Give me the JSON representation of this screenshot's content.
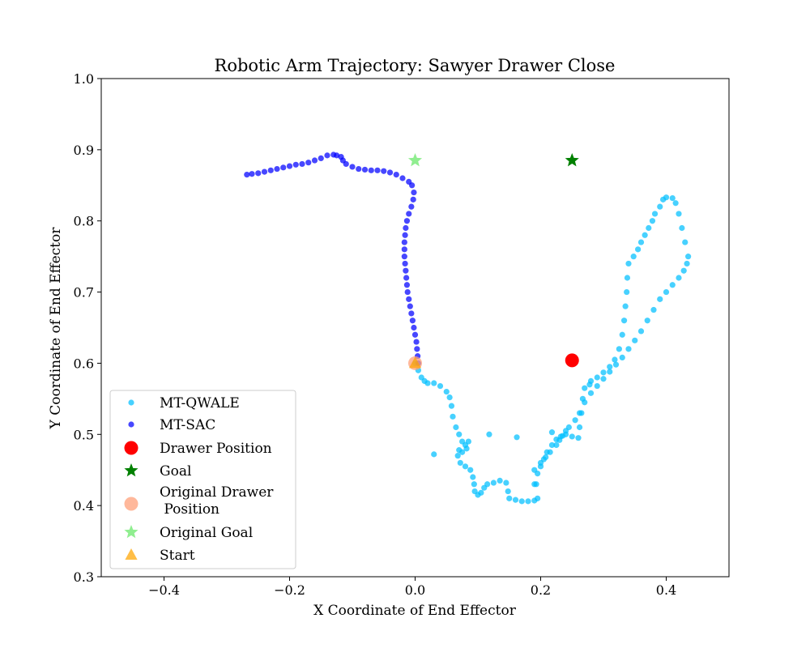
{
  "chart_data": {
    "type": "scatter",
    "title": "Robotic Arm Trajectory: Sawyer Drawer Close",
    "xlabel": "X Coordinate of End Effector",
    "ylabel": "Y Coordinate of End Effector",
    "xlim": [
      -0.5,
      0.5
    ],
    "ylim": [
      0.3,
      1.0
    ],
    "xticks": [
      -0.4,
      -0.2,
      0.0,
      0.2,
      0.4
    ],
    "xtick_labels": [
      "−0.4",
      "−0.2",
      "0.0",
      "0.2",
      "0.4"
    ],
    "yticks": [
      0.3,
      0.4,
      0.5,
      0.6,
      0.7,
      0.8,
      0.9,
      1.0
    ],
    "ytick_labels": [
      "0.3",
      "0.4",
      "0.5",
      "0.6",
      "0.7",
      "0.8",
      "0.9",
      "1.0"
    ],
    "grid": false,
    "legend_position": "lower-left",
    "series": [
      {
        "name": "MT-QWALE",
        "marker": "circle",
        "color": "#00BFFF",
        "points": [
          [
            0.0,
            0.6
          ],
          [
            0.005,
            0.59
          ],
          [
            0.01,
            0.58
          ],
          [
            0.015,
            0.575
          ],
          [
            0.02,
            0.572
          ],
          [
            0.03,
            0.572
          ],
          [
            0.04,
            0.568
          ],
          [
            0.05,
            0.56
          ],
          [
            0.055,
            0.552
          ],
          [
            0.058,
            0.54
          ],
          [
            0.06,
            0.525
          ],
          [
            0.065,
            0.51
          ],
          [
            0.07,
            0.5
          ],
          [
            0.075,
            0.49
          ],
          [
            0.08,
            0.485
          ],
          [
            0.085,
            0.49
          ],
          [
            0.082,
            0.48
          ],
          [
            0.075,
            0.475
          ],
          [
            0.07,
            0.478
          ],
          [
            0.068,
            0.47
          ],
          [
            0.072,
            0.46
          ],
          [
            0.08,
            0.455
          ],
          [
            0.088,
            0.45
          ],
          [
            0.092,
            0.44
          ],
          [
            0.094,
            0.43
          ],
          [
            0.095,
            0.42
          ],
          [
            0.1,
            0.415
          ],
          [
            0.105,
            0.418
          ],
          [
            0.11,
            0.425
          ],
          [
            0.115,
            0.43
          ],
          [
            0.125,
            0.432
          ],
          [
            0.135,
            0.435
          ],
          [
            0.145,
            0.432
          ],
          [
            0.148,
            0.42
          ],
          [
            0.15,
            0.41
          ],
          [
            0.16,
            0.408
          ],
          [
            0.17,
            0.406
          ],
          [
            0.18,
            0.406
          ],
          [
            0.19,
            0.407
          ],
          [
            0.195,
            0.41
          ],
          [
            0.19,
            0.43
          ],
          [
            0.19,
            0.45
          ],
          [
            0.2,
            0.455
          ],
          [
            0.205,
            0.465
          ],
          [
            0.21,
            0.475
          ],
          [
            0.218,
            0.485
          ],
          [
            0.225,
            0.493
          ],
          [
            0.232,
            0.497
          ],
          [
            0.24,
            0.5
          ],
          [
            0.25,
            0.497
          ],
          [
            0.26,
            0.495
          ],
          [
            0.262,
            0.51
          ],
          [
            0.265,
            0.53
          ],
          [
            0.267,
            0.55
          ],
          [
            0.27,
            0.565
          ],
          [
            0.278,
            0.57
          ],
          [
            0.28,
            0.575
          ],
          [
            0.29,
            0.58
          ],
          [
            0.3,
            0.587
          ],
          [
            0.31,
            0.595
          ],
          [
            0.318,
            0.605
          ],
          [
            0.325,
            0.62
          ],
          [
            0.33,
            0.64
          ],
          [
            0.333,
            0.66
          ],
          [
            0.335,
            0.68
          ],
          [
            0.337,
            0.7
          ],
          [
            0.338,
            0.72
          ],
          [
            0.34,
            0.74
          ],
          [
            0.348,
            0.75
          ],
          [
            0.355,
            0.76
          ],
          [
            0.36,
            0.77
          ],
          [
            0.366,
            0.78
          ],
          [
            0.372,
            0.79
          ],
          [
            0.378,
            0.8
          ],
          [
            0.382,
            0.81
          ],
          [
            0.39,
            0.82
          ],
          [
            0.395,
            0.83
          ],
          [
            0.4,
            0.833
          ],
          [
            0.41,
            0.832
          ],
          [
            0.415,
            0.825
          ],
          [
            0.42,
            0.81
          ],
          [
            0.425,
            0.79
          ],
          [
            0.43,
            0.77
          ],
          [
            0.435,
            0.75
          ],
          [
            0.433,
            0.74
          ],
          [
            0.428,
            0.73
          ],
          [
            0.42,
            0.72
          ],
          [
            0.41,
            0.71
          ],
          [
            0.4,
            0.7
          ],
          [
            0.39,
            0.69
          ],
          [
            0.38,
            0.675
          ],
          [
            0.37,
            0.66
          ],
          [
            0.36,
            0.645
          ],
          [
            0.35,
            0.632
          ],
          [
            0.34,
            0.62
          ],
          [
            0.33,
            0.608
          ],
          [
            0.32,
            0.598
          ],
          [
            0.31,
            0.588
          ],
          [
            0.3,
            0.578
          ],
          [
            0.29,
            0.568
          ],
          [
            0.28,
            0.558
          ],
          [
            0.27,
            0.545
          ],
          [
            0.262,
            0.53
          ],
          [
            0.255,
            0.52
          ],
          [
            0.245,
            0.51
          ],
          [
            0.24,
            0.505
          ],
          [
            0.235,
            0.498
          ],
          [
            0.23,
            0.492
          ],
          [
            0.225,
            0.485
          ],
          [
            0.215,
            0.475
          ],
          [
            0.208,
            0.468
          ],
          [
            0.2,
            0.46
          ],
          [
            0.195,
            0.445
          ],
          [
            0.193,
            0.43
          ],
          [
            0.03,
            0.472
          ],
          [
            0.118,
            0.5
          ],
          [
            0.162,
            0.496
          ],
          [
            0.218,
            0.503
          ]
        ]
      },
      {
        "name": "MT-SAC",
        "marker": "circle",
        "color": "#0000FF",
        "points": [
          [
            0.005,
            0.6
          ],
          [
            0.004,
            0.61
          ],
          [
            0.003,
            0.62
          ],
          [
            0.002,
            0.63
          ],
          [
            0.0,
            0.64
          ],
          [
            -0.002,
            0.65
          ],
          [
            -0.004,
            0.66
          ],
          [
            -0.006,
            0.67
          ],
          [
            -0.008,
            0.68
          ],
          [
            -0.01,
            0.69
          ],
          [
            -0.012,
            0.7
          ],
          [
            -0.013,
            0.71
          ],
          [
            -0.014,
            0.72
          ],
          [
            -0.015,
            0.73
          ],
          [
            -0.016,
            0.74
          ],
          [
            -0.017,
            0.75
          ],
          [
            -0.017,
            0.76
          ],
          [
            -0.017,
            0.77
          ],
          [
            -0.016,
            0.78
          ],
          [
            -0.015,
            0.79
          ],
          [
            -0.013,
            0.8
          ],
          [
            -0.01,
            0.81
          ],
          [
            -0.006,
            0.82
          ],
          [
            -0.003,
            0.83
          ],
          [
            -0.002,
            0.84
          ],
          [
            -0.005,
            0.85
          ],
          [
            -0.01,
            0.855
          ],
          [
            -0.02,
            0.86
          ],
          [
            -0.03,
            0.865
          ],
          [
            -0.04,
            0.868
          ],
          [
            -0.05,
            0.87
          ],
          [
            -0.06,
            0.871
          ],
          [
            -0.07,
            0.871
          ],
          [
            -0.08,
            0.872
          ],
          [
            -0.09,
            0.873
          ],
          [
            -0.1,
            0.876
          ],
          [
            -0.11,
            0.88
          ],
          [
            -0.115,
            0.885
          ],
          [
            -0.118,
            0.89
          ],
          [
            -0.125,
            0.892
          ],
          [
            -0.13,
            0.893
          ],
          [
            -0.14,
            0.892
          ],
          [
            -0.15,
            0.888
          ],
          [
            -0.16,
            0.885
          ],
          [
            -0.17,
            0.882
          ],
          [
            -0.18,
            0.88
          ],
          [
            -0.19,
            0.879
          ],
          [
            -0.2,
            0.877
          ],
          [
            -0.21,
            0.875
          ],
          [
            -0.22,
            0.873
          ],
          [
            -0.23,
            0.871
          ],
          [
            -0.24,
            0.869
          ],
          [
            -0.25,
            0.867
          ],
          [
            -0.26,
            0.866
          ],
          [
            -0.268,
            0.865
          ]
        ]
      },
      {
        "name": "Drawer Position",
        "marker": "circle-large",
        "color": "#FF0000",
        "points": [
          [
            0.25,
            0.604
          ]
        ]
      },
      {
        "name": "Goal",
        "marker": "star",
        "color": "#008000",
        "points": [
          [
            0.25,
            0.885
          ]
        ]
      },
      {
        "name": "Original Drawer\n Position",
        "marker": "circle-large",
        "color": "#FFA07A",
        "points": [
          [
            0.0,
            0.6
          ]
        ]
      },
      {
        "name": "Original Goal",
        "marker": "star",
        "color": "#90EE90",
        "points": [
          [
            0.0,
            0.885
          ]
        ]
      },
      {
        "name": "Start",
        "marker": "triangle",
        "color": "#FFA500",
        "points": [
          [
            0.0,
            0.6
          ]
        ]
      }
    ]
  }
}
